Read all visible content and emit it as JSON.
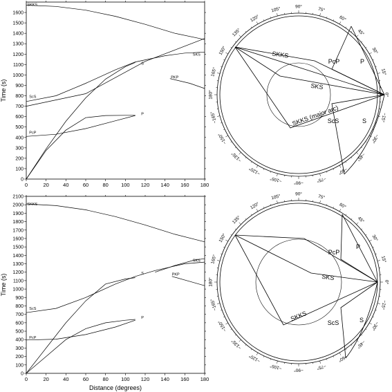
{
  "chart_data": [
    {
      "type": "line",
      "panel": "top-left",
      "xlabel": "",
      "ylabel": "Time (s)",
      "xlim": [
        0,
        180
      ],
      "ylim": [
        0,
        1700
      ],
      "xticks": [
        "0",
        "20",
        "40",
        "60",
        "80",
        "100",
        "120",
        "140",
        "160",
        "180"
      ],
      "yticks": [
        "0",
        "100",
        "200",
        "300",
        "400",
        "500",
        "600",
        "700",
        "800",
        "900",
        "1000",
        "1100",
        "1200",
        "1300",
        "1400",
        "1500",
        "1600"
      ],
      "series": [
        {
          "name": "SKKS",
          "x": [
            0,
            30,
            60,
            90,
            120,
            150,
            180
          ],
          "y": [
            1670,
            1658,
            1622,
            1563,
            1486,
            1400,
            1340
          ]
        },
        {
          "name": "S",
          "x": [
            0,
            20,
            40,
            60,
            80,
            100,
            110
          ],
          "y": [
            0,
            290,
            555,
            780,
            960,
            1080,
            1120
          ]
        },
        {
          "name": "ScS",
          "x": [
            0,
            30,
            60,
            90,
            110,
            140,
            160,
            180
          ],
          "y": [
            745,
            800,
            920,
            1050,
            1125,
            1185,
            1210,
            1220
          ]
        },
        {
          "name": "SKS",
          "x": [
            0,
            60,
            120,
            180
          ],
          "y": [
            700,
            820,
            1130,
            1350
          ]
        },
        {
          "name": "P",
          "x": [
            0,
            20,
            40,
            60,
            80,
            100,
            110
          ],
          "y": [
            0,
            275,
            470,
            590,
            610,
            612,
            612
          ]
        },
        {
          "name": "PcP",
          "x": [
            0,
            30,
            60,
            90,
            110
          ],
          "y": [
            410,
            430,
            485,
            560,
            610
          ]
        },
        {
          "name": "PKP",
          "x": [
            145,
            165,
            180
          ],
          "y": [
            965,
            920,
            870
          ]
        }
      ],
      "labels": [
        {
          "text": "SKKS",
          "x": 1,
          "y": 1663
        },
        {
          "text": "SKS",
          "x": 168,
          "y": 1185
        },
        {
          "text": "S",
          "x": 116,
          "y": 1100
        },
        {
          "text": "ScS",
          "x": 3,
          "y": 780
        },
        {
          "text": "PKP",
          "x": 146,
          "y": 965
        },
        {
          "text": "P",
          "x": 116,
          "y": 615
        },
        {
          "text": "PcP",
          "x": 3,
          "y": 435
        }
      ]
    },
    {
      "type": "line",
      "panel": "bottom-left",
      "xlabel": "Distance (degrees)",
      "ylabel": "Time (s)",
      "xlim": [
        0,
        180
      ],
      "ylim": [
        0,
        2100
      ],
      "xticks": [
        "0",
        "20",
        "40",
        "60",
        "80",
        "100",
        "120",
        "140",
        "160",
        "180"
      ],
      "yticks": [
        "0",
        "100",
        "200",
        "300",
        "400",
        "500",
        "600",
        "700",
        "800",
        "900",
        "1000",
        "1100",
        "1200",
        "1300",
        "1400",
        "1500",
        "1600",
        "1700",
        "1800",
        "1900",
        "2000",
        "2100"
      ],
      "series": [
        {
          "name": "SKKS",
          "x": [
            0,
            30,
            60,
            90,
            120,
            150,
            180
          ],
          "y": [
            2010,
            1990,
            1940,
            1860,
            1760,
            1650,
            1560
          ]
        },
        {
          "name": "S",
          "x": [
            0,
            20,
            40,
            60,
            80,
            100,
            110
          ],
          "y": [
            0,
            300,
            600,
            860,
            1060,
            1120,
            1135
          ]
        },
        {
          "name": "ScS",
          "x": [
            0,
            30,
            60,
            90,
            110,
            130,
            160,
            180
          ],
          "y": [
            720,
            770,
            900,
            1060,
            1150,
            1220,
            1300,
            1320
          ]
        },
        {
          "name": "SKS",
          "x": [
            130,
            150,
            170,
            180
          ],
          "y": [
            1200,
            1280,
            1345,
            1360
          ]
        },
        {
          "name": "P",
          "x": [
            0,
            20,
            40,
            60,
            80,
            100,
            110
          ],
          "y": [
            0,
            200,
            400,
            530,
            600,
            630,
            640
          ]
        },
        {
          "name": "PcP",
          "x": [
            0,
            30,
            60,
            90,
            110
          ],
          "y": [
            395,
            405,
            460,
            550,
            630
          ]
        },
        {
          "name": "PKP",
          "x": [
            147,
            165,
            180
          ],
          "y": [
            1150,
            1090,
            1040
          ]
        }
      ],
      "labels": [
        {
          "text": "SKKS",
          "x": 1,
          "y": 1995
        },
        {
          "text": "SKS",
          "x": 168,
          "y": 1325
        },
        {
          "text": "S",
          "x": 116,
          "y": 1175
        },
        {
          "text": "ScS",
          "x": 3,
          "y": 755
        },
        {
          "text": "PKP",
          "x": 147,
          "y": 1160
        },
        {
          "text": "P",
          "x": 116,
          "y": 650
        },
        {
          "text": "PcP",
          "x": 3,
          "y": 410
        }
      ]
    },
    {
      "type": "diagram",
      "panel": "top-right",
      "angle_labels": [
        "90°",
        "75°",
        "60°",
        "45°",
        "30°",
        "15°",
        "0°",
        "−15°",
        "−30°",
        "−45°",
        "−60°",
        "−75°",
        "−90°",
        "−105°",
        "−120°",
        "−135°",
        "−150°",
        "−165°",
        "180°",
        "165°",
        "150°",
        "135°",
        "120°",
        "105°"
      ],
      "ray_labels": [
        "SKKS",
        "PcP",
        "P",
        "SKS",
        "SKKS (major arc)",
        "ScS",
        "S"
      ]
    },
    {
      "type": "diagram",
      "panel": "bottom-right",
      "angle_labels": [
        "90°",
        "75°",
        "60°",
        "45°",
        "30°",
        "15°",
        "0°",
        "−15°",
        "−30°",
        "−45°",
        "−60°",
        "−75°",
        "−90°",
        "−105°",
        "−120°",
        "−135°",
        "−150°",
        "−165°",
        "180°",
        "165°",
        "150°",
        "135°",
        "120°",
        "105°"
      ],
      "ray_labels": [
        "PcP",
        "P",
        "SKS",
        "SKKS",
        "ScS",
        "S"
      ]
    }
  ]
}
